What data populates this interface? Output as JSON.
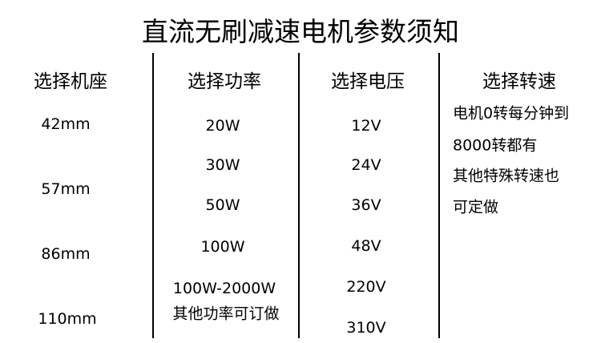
{
  "title": "直流无刷减速电机参数须知",
  "columns": [
    {
      "header": "选择机座",
      "values": [
        "42mm",
        "57mm",
        "86mm",
        "110mm"
      ]
    },
    {
      "header": "选择功率",
      "values": [
        "20W",
        "30W",
        "50W",
        "100W",
        "100W-2000W",
        "其他功率可订做"
      ]
    },
    {
      "header": "选择电压",
      "values": [
        "12V",
        "24V",
        "36V",
        "48V",
        "220V",
        "310V"
      ]
    },
    {
      "header": "选择转速",
      "values": [
        "电机0转每分钟到",
        "8000转都有",
        "其他特殊转速也",
        "可定做"
      ]
    }
  ]
}
